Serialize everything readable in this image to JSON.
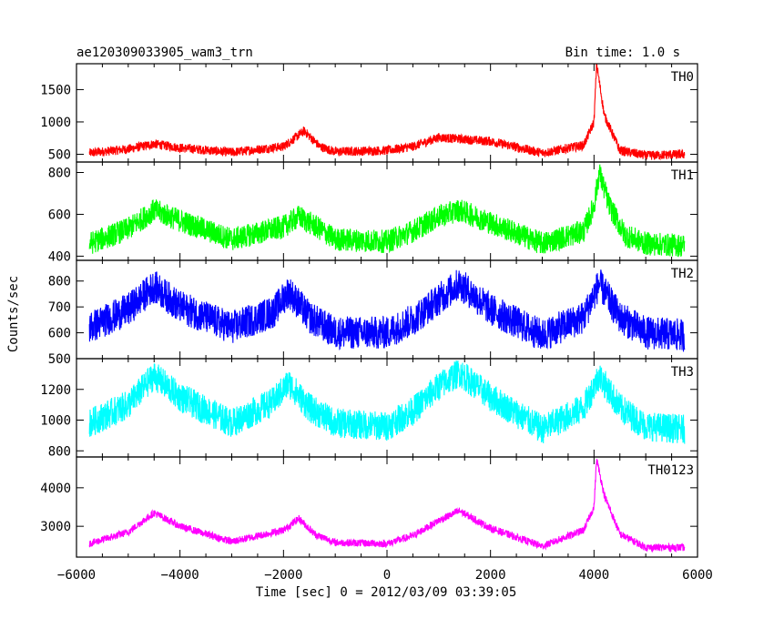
{
  "header": {
    "title": "ae120309033905_wam3_trn",
    "bin_time": "Bin time: 1.0 s"
  },
  "chart_data": {
    "type": "line",
    "title": "ae120309033905_wam3_trn",
    "subtitle": "Bin time: 1.0 s",
    "xlabel": "Time [sec] 0 = 2012/03/09 03:39:05",
    "ylabel": "Counts/sec",
    "xlim": [
      -6000,
      6000
    ],
    "x_ticks": [
      -6000,
      -4000,
      -2000,
      0,
      2000,
      4000,
      6000
    ],
    "x_tick_labels": [
      "−6000",
      "−4000",
      "−2000",
      "0",
      "2000",
      "4000",
      "6000"
    ],
    "data_x_range": [
      -5750,
      5750
    ],
    "grid": false,
    "legend": "none",
    "panels": [
      {
        "name": "TH0",
        "color": "#ff0000",
        "ylim": [
          380,
          1900
        ],
        "y_ticks": [
          500,
          1000,
          1500
        ],
        "noise": 45,
        "x": [
          -5750,
          -5000,
          -4500,
          -4000,
          -3000,
          -2000,
          -1600,
          -1300,
          -1000,
          0,
          500,
          1000,
          2000,
          3000,
          3800,
          4000,
          4050,
          4200,
          4500,
          5000,
          5750
        ],
        "y": [
          520,
          580,
          660,
          600,
          530,
          620,
          860,
          620,
          540,
          560,
          620,
          760,
          700,
          520,
          640,
          1000,
          1900,
          1100,
          560,
          480,
          500
        ]
      },
      {
        "name": "TH1",
        "color": "#00ff00",
        "ylim": [
          380,
          850
        ],
        "y_ticks": [
          400,
          600,
          800
        ],
        "noise": 35,
        "x": [
          -5750,
          -5000,
          -4500,
          -4000,
          -3000,
          -2000,
          -1700,
          -1300,
          -1000,
          0,
          500,
          1000,
          1400,
          2000,
          3000,
          3800,
          4000,
          4100,
          4300,
          4600,
          5000,
          5750
        ],
        "y": [
          460,
          530,
          620,
          570,
          480,
          540,
          590,
          530,
          480,
          470,
          520,
          590,
          620,
          560,
          460,
          520,
          640,
          800,
          640,
          500,
          460,
          450
        ]
      },
      {
        "name": "TH2",
        "color": "#0000ff",
        "ylim": [
          500,
          880
        ],
        "y_ticks": [
          500,
          600,
          700,
          800
        ],
        "noise": 40,
        "x": [
          -5750,
          -5000,
          -4500,
          -4000,
          -3000,
          -2200,
          -1900,
          -1500,
          -1000,
          0,
          500,
          1000,
          1400,
          2000,
          3000,
          3800,
          4100,
          4500,
          5000,
          5750
        ],
        "y": [
          620,
          690,
          780,
          700,
          620,
          680,
          760,
          660,
          600,
          600,
          650,
          730,
          790,
          690,
          590,
          660,
          790,
          660,
          600,
          590
        ]
      },
      {
        "name": "TH3",
        "color": "#00ffff",
        "ylim": [
          760,
          1400
        ],
        "y_ticks": [
          800,
          1000,
          1200
        ],
        "noise": 60,
        "x": [
          -5750,
          -5000,
          -4500,
          -4000,
          -3000,
          -2200,
          -1900,
          -1500,
          -1000,
          0,
          500,
          1000,
          1400,
          2000,
          3000,
          3800,
          4100,
          4500,
          5000,
          5750
        ],
        "y": [
          980,
          1100,
          1290,
          1150,
          980,
          1120,
          1240,
          1080,
          980,
          960,
          1060,
          1220,
          1310,
          1150,
          940,
          1080,
          1290,
          1080,
          960,
          940
        ]
      },
      {
        "name": "TH0123",
        "color": "#ff00ff",
        "ylim": [
          2200,
          4800
        ],
        "y_ticks": [
          3000,
          4000
        ],
        "noise": 60,
        "x": [
          -5750,
          -5000,
          -4500,
          -4000,
          -3000,
          -2000,
          -1700,
          -1400,
          -1000,
          0,
          500,
          1000,
          1400,
          2000,
          3000,
          3800,
          4000,
          4050,
          4200,
          4500,
          5000,
          5750
        ],
        "y": [
          2550,
          2850,
          3350,
          3000,
          2600,
          2900,
          3200,
          2800,
          2580,
          2550,
          2750,
          3150,
          3400,
          2950,
          2480,
          2900,
          3500,
          4750,
          3800,
          2800,
          2450,
          2450
        ]
      }
    ]
  }
}
